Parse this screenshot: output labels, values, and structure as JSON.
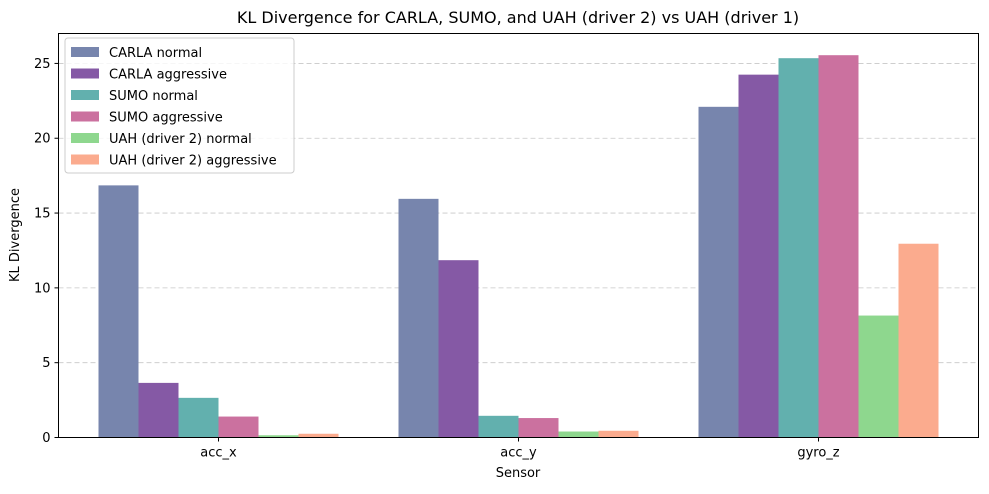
{
  "chart_data": {
    "type": "bar",
    "title": "KL Divergence for CARLA, SUMO, and UAH (driver 2) vs UAH (driver 1)",
    "xlabel": "Sensor",
    "ylabel": "KL Divergence",
    "categories": [
      "acc_x",
      "acc_y",
      "gyro_z"
    ],
    "ylim": [
      0,
      27
    ],
    "yticks": [
      0,
      5,
      10,
      15,
      20,
      25
    ],
    "grid": "y-dashed",
    "legend_position": "top-left",
    "series": [
      {
        "name": "CARLA normal",
        "color": "#7785ad",
        "values": [
          16.85,
          15.95,
          22.1
        ]
      },
      {
        "name": "CARLA aggressive",
        "color": "#8559a5",
        "values": [
          3.65,
          11.85,
          24.25
        ]
      },
      {
        "name": "SUMO normal",
        "color": "#62b0ae",
        "values": [
          2.65,
          1.45,
          25.35
        ]
      },
      {
        "name": "SUMO aggressive",
        "color": "#cb719f",
        "values": [
          1.4,
          1.3,
          25.55
        ]
      },
      {
        "name": "UAH (driver 2) normal",
        "color": "#8ed78e",
        "values": [
          0.15,
          0.4,
          8.15
        ]
      },
      {
        "name": "UAH (driver 2) aggressive",
        "color": "#fbab8e",
        "values": [
          0.25,
          0.45,
          12.95
        ]
      }
    ]
  }
}
